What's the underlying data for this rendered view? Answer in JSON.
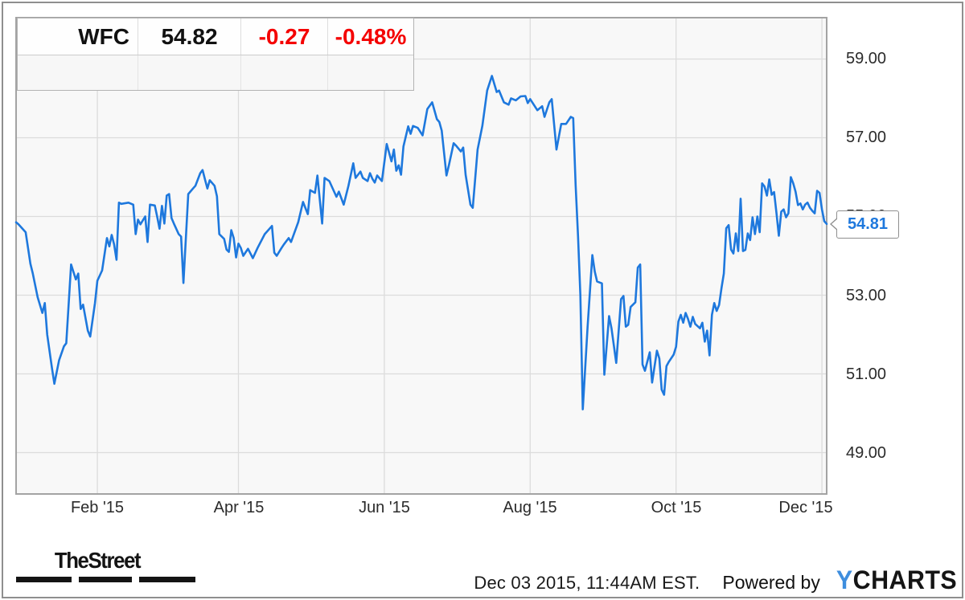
{
  "quote_strip": {
    "ticker": "WFC",
    "last_price": "54.82",
    "change": "-0.27",
    "change_percent": "-0.48%"
  },
  "price_callout": "54.81",
  "footer": {
    "logo_text": "TheStreet",
    "timestamp": "Dec 03 2015, 11:44AM EST.",
    "powered_by": "Powered by",
    "brand_first_letter": "Y",
    "brand_rest": "CHARTS"
  },
  "colors": {
    "line": "#1e78dd",
    "negative": "#f40000",
    "plot_bg": "#f8f8f8",
    "grid": "#dcdcdc",
    "plot_border": "#a3a3a3",
    "callout_text": "#1e78dd",
    "brand_blue": "#3e8ede"
  },
  "chart_data": {
    "type": "line",
    "title": "",
    "xlabel": "",
    "ylabel": "",
    "x_unit": "days since chart start (late Dec 2014 through Dec 03 2015)",
    "xlim": [
      0,
      339
    ],
    "ylim": [
      47.95,
      60.05
    ],
    "grid": true,
    "legend_position": "top-left",
    "y_ticks": [
      {
        "value": 59,
        "label": "59.00"
      },
      {
        "value": 57,
        "label": "57.00"
      },
      {
        "value": 55,
        "label": "55.00"
      },
      {
        "value": 53,
        "label": "53.00"
      },
      {
        "value": 51,
        "label": "51.00"
      },
      {
        "value": 49,
        "label": "49.00"
      }
    ],
    "x_ticks": [
      {
        "day": 34,
        "label": "Feb '15"
      },
      {
        "day": 93,
        "label": "Apr '15"
      },
      {
        "day": 154,
        "label": "Jun '15"
      },
      {
        "day": 215,
        "label": "Aug '15"
      },
      {
        "day": 276,
        "label": "Oct '15"
      },
      {
        "day": 337,
        "label": "Dec '15"
      }
    ],
    "series": [
      {
        "name": "WFC",
        "color": "#1e78dd",
        "end_label": "54.81",
        "points": [
          [
            0,
            54.85
          ],
          [
            1,
            54.8
          ],
          [
            4,
            54.6
          ],
          [
            6,
            53.8
          ],
          [
            7,
            53.55
          ],
          [
            9,
            52.95
          ],
          [
            11,
            52.55
          ],
          [
            12,
            52.8
          ],
          [
            13,
            52.0
          ],
          [
            15,
            51.15
          ],
          [
            16,
            50.75
          ],
          [
            18,
            51.35
          ],
          [
            20,
            51.7
          ],
          [
            21,
            51.78
          ],
          [
            23,
            53.78
          ],
          [
            25,
            53.4
          ],
          [
            26,
            53.55
          ],
          [
            27,
            52.65
          ],
          [
            28,
            52.76
          ],
          [
            30,
            52.1
          ],
          [
            31,
            51.95
          ],
          [
            33,
            52.8
          ],
          [
            34,
            53.37
          ],
          [
            35,
            53.5
          ],
          [
            36,
            53.63
          ],
          [
            38,
            54.45
          ],
          [
            39,
            54.24
          ],
          [
            40,
            54.53
          ],
          [
            41,
            54.29
          ],
          [
            42,
            53.9
          ],
          [
            43,
            55.35
          ],
          [
            44,
            55.32
          ],
          [
            47,
            55.35
          ],
          [
            49,
            55.3
          ],
          [
            50,
            54.55
          ],
          [
            51,
            54.92
          ],
          [
            52,
            54.8
          ],
          [
            54,
            55.0
          ],
          [
            55,
            54.35
          ],
          [
            56,
            55.3
          ],
          [
            58,
            55.28
          ],
          [
            59,
            55.0
          ],
          [
            60,
            54.69
          ],
          [
            61,
            55.27
          ],
          [
            62,
            54.82
          ],
          [
            63,
            55.53
          ],
          [
            64,
            55.57
          ],
          [
            65,
            54.96
          ],
          [
            66,
            54.82
          ],
          [
            68,
            54.55
          ],
          [
            69,
            54.49
          ],
          [
            70,
            53.31
          ],
          [
            72,
            55.57
          ],
          [
            74,
            55.71
          ],
          [
            75,
            55.78
          ],
          [
            77,
            56.1
          ],
          [
            78,
            56.18
          ],
          [
            79,
            55.94
          ],
          [
            80,
            55.71
          ],
          [
            81,
            55.92
          ],
          [
            83,
            55.78
          ],
          [
            84,
            55.51
          ],
          [
            85,
            54.55
          ],
          [
            87,
            54.43
          ],
          [
            88,
            54.16
          ],
          [
            89,
            54.1
          ],
          [
            90,
            54.65
          ],
          [
            91,
            54.45
          ],
          [
            92,
            53.96
          ],
          [
            93,
            54.31
          ],
          [
            94,
            54.2
          ],
          [
            95,
            54.0
          ],
          [
            97,
            54.18
          ],
          [
            99,
            53.94
          ],
          [
            101,
            54.2
          ],
          [
            104,
            54.55
          ],
          [
            107,
            54.76
          ],
          [
            108,
            54.08
          ],
          [
            109,
            54.0
          ],
          [
            111,
            54.2
          ],
          [
            112,
            54.29
          ],
          [
            114,
            54.45
          ],
          [
            115,
            54.35
          ],
          [
            118,
            54.86
          ],
          [
            120,
            55.37
          ],
          [
            122,
            55.06
          ],
          [
            123,
            55.67
          ],
          [
            125,
            55.6
          ],
          [
            126,
            56.04
          ],
          [
            128,
            54.82
          ],
          [
            129,
            55.98
          ],
          [
            131,
            55.9
          ],
          [
            134,
            55.5
          ],
          [
            135,
            55.63
          ],
          [
            137,
            55.3
          ],
          [
            139,
            55.78
          ],
          [
            141,
            56.35
          ],
          [
            142,
            55.98
          ],
          [
            144,
            56.14
          ],
          [
            145,
            55.98
          ],
          [
            147,
            55.9
          ],
          [
            148,
            56.1
          ],
          [
            149,
            55.96
          ],
          [
            150,
            55.86
          ],
          [
            151,
            56.04
          ],
          [
            153,
            55.9
          ],
          [
            155,
            56.84
          ],
          [
            157,
            56.4
          ],
          [
            158,
            56.7
          ],
          [
            159,
            56.16
          ],
          [
            160,
            56.3
          ],
          [
            161,
            56.06
          ],
          [
            162,
            56.78
          ],
          [
            164,
            57.29
          ],
          [
            165,
            57.1
          ],
          [
            166,
            57.3
          ],
          [
            168,
            57.25
          ],
          [
            170,
            57.06
          ],
          [
            172,
            57.73
          ],
          [
            174,
            57.9
          ],
          [
            176,
            57.47
          ],
          [
            177,
            57.4
          ],
          [
            178,
            57.18
          ],
          [
            180,
            56.04
          ],
          [
            181,
            56.3
          ],
          [
            183,
            56.86
          ],
          [
            184,
            56.8
          ],
          [
            186,
            56.65
          ],
          [
            187,
            56.75
          ],
          [
            188,
            56.06
          ],
          [
            190,
            55.3
          ],
          [
            191,
            55.22
          ],
          [
            193,
            56.7
          ],
          [
            195,
            57.3
          ],
          [
            197,
            58.2
          ],
          [
            199,
            58.57
          ],
          [
            201,
            58.16
          ],
          [
            202,
            58.2
          ],
          [
            204,
            57.9
          ],
          [
            206,
            57.84
          ],
          [
            207,
            58.0
          ],
          [
            209,
            57.95
          ],
          [
            211,
            58.05
          ],
          [
            213,
            58.06
          ],
          [
            214,
            57.88
          ],
          [
            215,
            57.98
          ],
          [
            218,
            57.7
          ],
          [
            220,
            57.8
          ],
          [
            221,
            57.53
          ],
          [
            223,
            57.9
          ],
          [
            224,
            57.98
          ],
          [
            226,
            56.7
          ],
          [
            228,
            57.35
          ],
          [
            230,
            57.35
          ],
          [
            232,
            57.53
          ],
          [
            233,
            57.5
          ],
          [
            234,
            55.8
          ],
          [
            235,
            54.5
          ],
          [
            236,
            53.0
          ],
          [
            237,
            50.1
          ],
          [
            239,
            52.2
          ],
          [
            241,
            54.02
          ],
          [
            242,
            53.6
          ],
          [
            243,
            53.35
          ],
          [
            245,
            53.3
          ],
          [
            246,
            50.98
          ],
          [
            248,
            52.47
          ],
          [
            249,
            52.16
          ],
          [
            251,
            51.28
          ],
          [
            253,
            52.9
          ],
          [
            254,
            52.98
          ],
          [
            255,
            52.2
          ],
          [
            256,
            52.25
          ],
          [
            257,
            52.7
          ],
          [
            259,
            52.82
          ],
          [
            260,
            53.7
          ],
          [
            261,
            53.78
          ],
          [
            262,
            51.24
          ],
          [
            263,
            51.08
          ],
          [
            265,
            51.55
          ],
          [
            266,
            50.78
          ],
          [
            268,
            51.59
          ],
          [
            269,
            51.39
          ],
          [
            270,
            50.6
          ],
          [
            271,
            50.47
          ],
          [
            272,
            51.2
          ],
          [
            273,
            51.31
          ],
          [
            275,
            51.49
          ],
          [
            276,
            51.69
          ],
          [
            277,
            52.33
          ],
          [
            278,
            52.5
          ],
          [
            279,
            52.3
          ],
          [
            280,
            52.55
          ],
          [
            281,
            52.4
          ],
          [
            282,
            52.2
          ],
          [
            283,
            52.45
          ],
          [
            284,
            52.27
          ],
          [
            286,
            52.16
          ],
          [
            287,
            52.3
          ],
          [
            288,
            51.82
          ],
          [
            289,
            52.1
          ],
          [
            290,
            51.47
          ],
          [
            291,
            52.5
          ],
          [
            292,
            52.8
          ],
          [
            293,
            52.6
          ],
          [
            294,
            52.75
          ],
          [
            295,
            53.18
          ],
          [
            296,
            53.55
          ],
          [
            297,
            54.7
          ],
          [
            298,
            54.78
          ],
          [
            299,
            54.16
          ],
          [
            300,
            54.06
          ],
          [
            301,
            54.57
          ],
          [
            302,
            54.12
          ],
          [
            303,
            55.45
          ],
          [
            304,
            54.12
          ],
          [
            305,
            54.15
          ],
          [
            306,
            54.57
          ],
          [
            307,
            54.4
          ],
          [
            308,
            54.98
          ],
          [
            309,
            54.55
          ],
          [
            310,
            55.0
          ],
          [
            311,
            54.6
          ],
          [
            312,
            55.84
          ],
          [
            313,
            55.76
          ],
          [
            314,
            55.53
          ],
          [
            315,
            55.94
          ],
          [
            316,
            55.55
          ],
          [
            317,
            55.62
          ],
          [
            318,
            55.08
          ],
          [
            319,
            54.51
          ],
          [
            320,
            55.12
          ],
          [
            321,
            55.18
          ],
          [
            322,
            54.98
          ],
          [
            323,
            55.08
          ],
          [
            324,
            56.0
          ],
          [
            325,
            55.84
          ],
          [
            326,
            55.63
          ],
          [
            327,
            55.29
          ],
          [
            328,
            55.33
          ],
          [
            329,
            55.18
          ],
          [
            330,
            55.3
          ],
          [
            331,
            55.35
          ],
          [
            332,
            55.22
          ],
          [
            333,
            55.14
          ],
          [
            334,
            55.08
          ],
          [
            335,
            55.65
          ],
          [
            336,
            55.6
          ],
          [
            337,
            55.18
          ],
          [
            338,
            54.88
          ],
          [
            339,
            54.81
          ]
        ]
      }
    ]
  }
}
